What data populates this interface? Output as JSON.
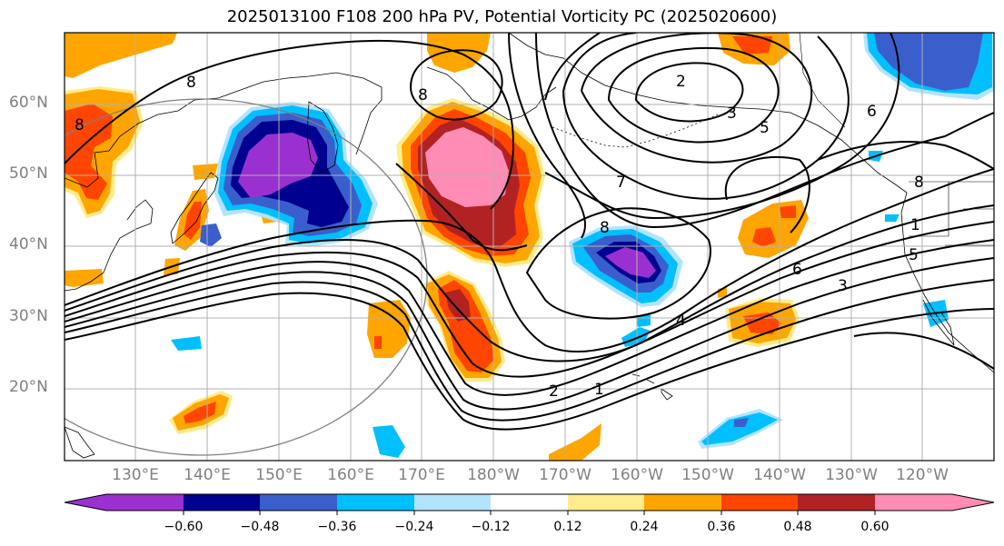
{
  "title": "2025013100 F108 200 hPa PV, Potential Vorticity PC (2025020600)",
  "map": {
    "lat_labels": [
      "60°N",
      "50°N",
      "40°N",
      "30°N",
      "20°N"
    ],
    "lon_labels": [
      "130°E",
      "140°E",
      "150°E",
      "160°E",
      "170°E",
      "180°W",
      "170°W",
      "160°W",
      "150°W",
      "140°W",
      "130°W",
      "120°W"
    ],
    "contour_labels": [
      "8",
      "8",
      "8",
      "2",
      "3",
      "5",
      "6",
      "7",
      "8",
      "8",
      "1",
      "6",
      "5",
      "3",
      "4",
      "2",
      "1"
    ]
  },
  "colorbar": {
    "ticks": [
      "−0.60",
      "−0.48",
      "−0.36",
      "−0.24",
      "−0.12",
      "0.12",
      "0.24",
      "0.36",
      "0.48",
      "0.60"
    ],
    "colors": [
      "#9b30d0",
      "#000090",
      "#3a5fcd",
      "#00bfff",
      "#b2e4ff",
      "#ffffff",
      "#ffec8b",
      "#ffa500",
      "#ff4500",
      "#b22222",
      "#ff8cb4"
    ]
  }
}
